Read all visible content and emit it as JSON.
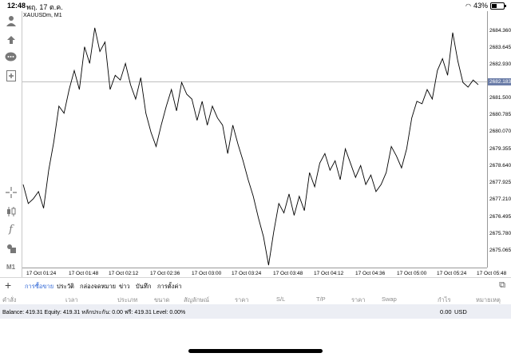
{
  "status_bar": {
    "time": "12:48",
    "date": "พฤ. 17 ต.ค.",
    "battery": "43%"
  },
  "chart": {
    "title": "XAUUSDm, M1",
    "bid_price": "2682.183",
    "price_labels": [
      "2684.360",
      "2683.645",
      "2682.930",
      "2681.500",
      "2680.785",
      "2680.070",
      "2679.355",
      "2678.640",
      "2677.925",
      "2677.210",
      "2676.495",
      "2675.780",
      "2675.065"
    ],
    "time_labels": [
      "17 Oct 01:24",
      "17 Oct 01:48",
      "17 Oct 02:12",
      "17 Oct 02:36",
      "17 Oct 03:00",
      "17 Oct 03:24",
      "17 Oct 03:48",
      "17 Oct 04:12",
      "17 Oct 04:36",
      "17 Oct 05:00",
      "17 Oct 05:24",
      "17 Oct 05:48"
    ],
    "line_color": "#000000",
    "bid_line_color": "#aaaaaa",
    "bid_box_color": "#6b7da8"
  },
  "chart_data": {
    "type": "line",
    "title": "XAUUSDm, M1",
    "y_range": [
      2674.5,
      2685.3
    ],
    "series": [
      {
        "values": [
          2678.0,
          2677.2,
          2677.4,
          2677.7,
          2677.0,
          2678.6,
          2679.8,
          2681.3,
          2681.0,
          2682.0,
          2682.8,
          2682.0,
          2683.8,
          2683.1,
          2684.6,
          2683.6,
          2684.0,
          2682.0,
          2682.6,
          2682.4,
          2683.1,
          2682.2,
          2681.6,
          2682.5,
          2681.0,
          2680.2,
          2679.6,
          2680.5,
          2681.3,
          2682.0,
          2681.1,
          2682.3,
          2681.8,
          2681.6,
          2680.7,
          2681.5,
          2680.5,
          2681.3,
          2680.8,
          2680.5,
          2679.3,
          2680.5,
          2679.7,
          2679.0,
          2678.2,
          2677.5,
          2676.6,
          2675.8,
          2674.6,
          2676.0,
          2677.2,
          2676.8,
          2677.6,
          2676.7,
          2677.5,
          2676.9,
          2678.5,
          2677.9,
          2678.9,
          2679.3,
          2678.6,
          2679.0,
          2678.2,
          2679.5,
          2678.9,
          2678.3,
          2678.8,
          2678.0,
          2678.4,
          2677.7,
          2678.0,
          2678.5,
          2679.6,
          2679.2,
          2678.7,
          2679.5,
          2680.8,
          2681.5,
          2681.4,
          2682.0,
          2681.6,
          2682.8,
          2683.3,
          2682.6,
          2684.4,
          2683.2,
          2682.3,
          2682.1,
          2682.4,
          2682.2
        ]
      }
    ]
  },
  "toolbar": {
    "timeframe": "M1"
  },
  "tabs": [
    "การซื้อขาย",
    "ประวัติ",
    "กล่องจดหมาย",
    "ข่าว",
    "บันทึก",
    "การตั้งค่า"
  ],
  "columns": [
    "คำสั่ง",
    "เวลา",
    "ประเภท",
    "ขนาด",
    "สัญลักษณ์",
    "ราคา",
    "S/L",
    "T/P",
    "ราคา",
    "Swap",
    "กำไร",
    "หมายเหตุ"
  ],
  "balance_text": "Balance: 419.31  Equity: 419.31  หลักประกัน: 0.00  ฟรี: 419.31  Level: 0.00%",
  "profit_value": "0.00",
  "currency": "USD"
}
